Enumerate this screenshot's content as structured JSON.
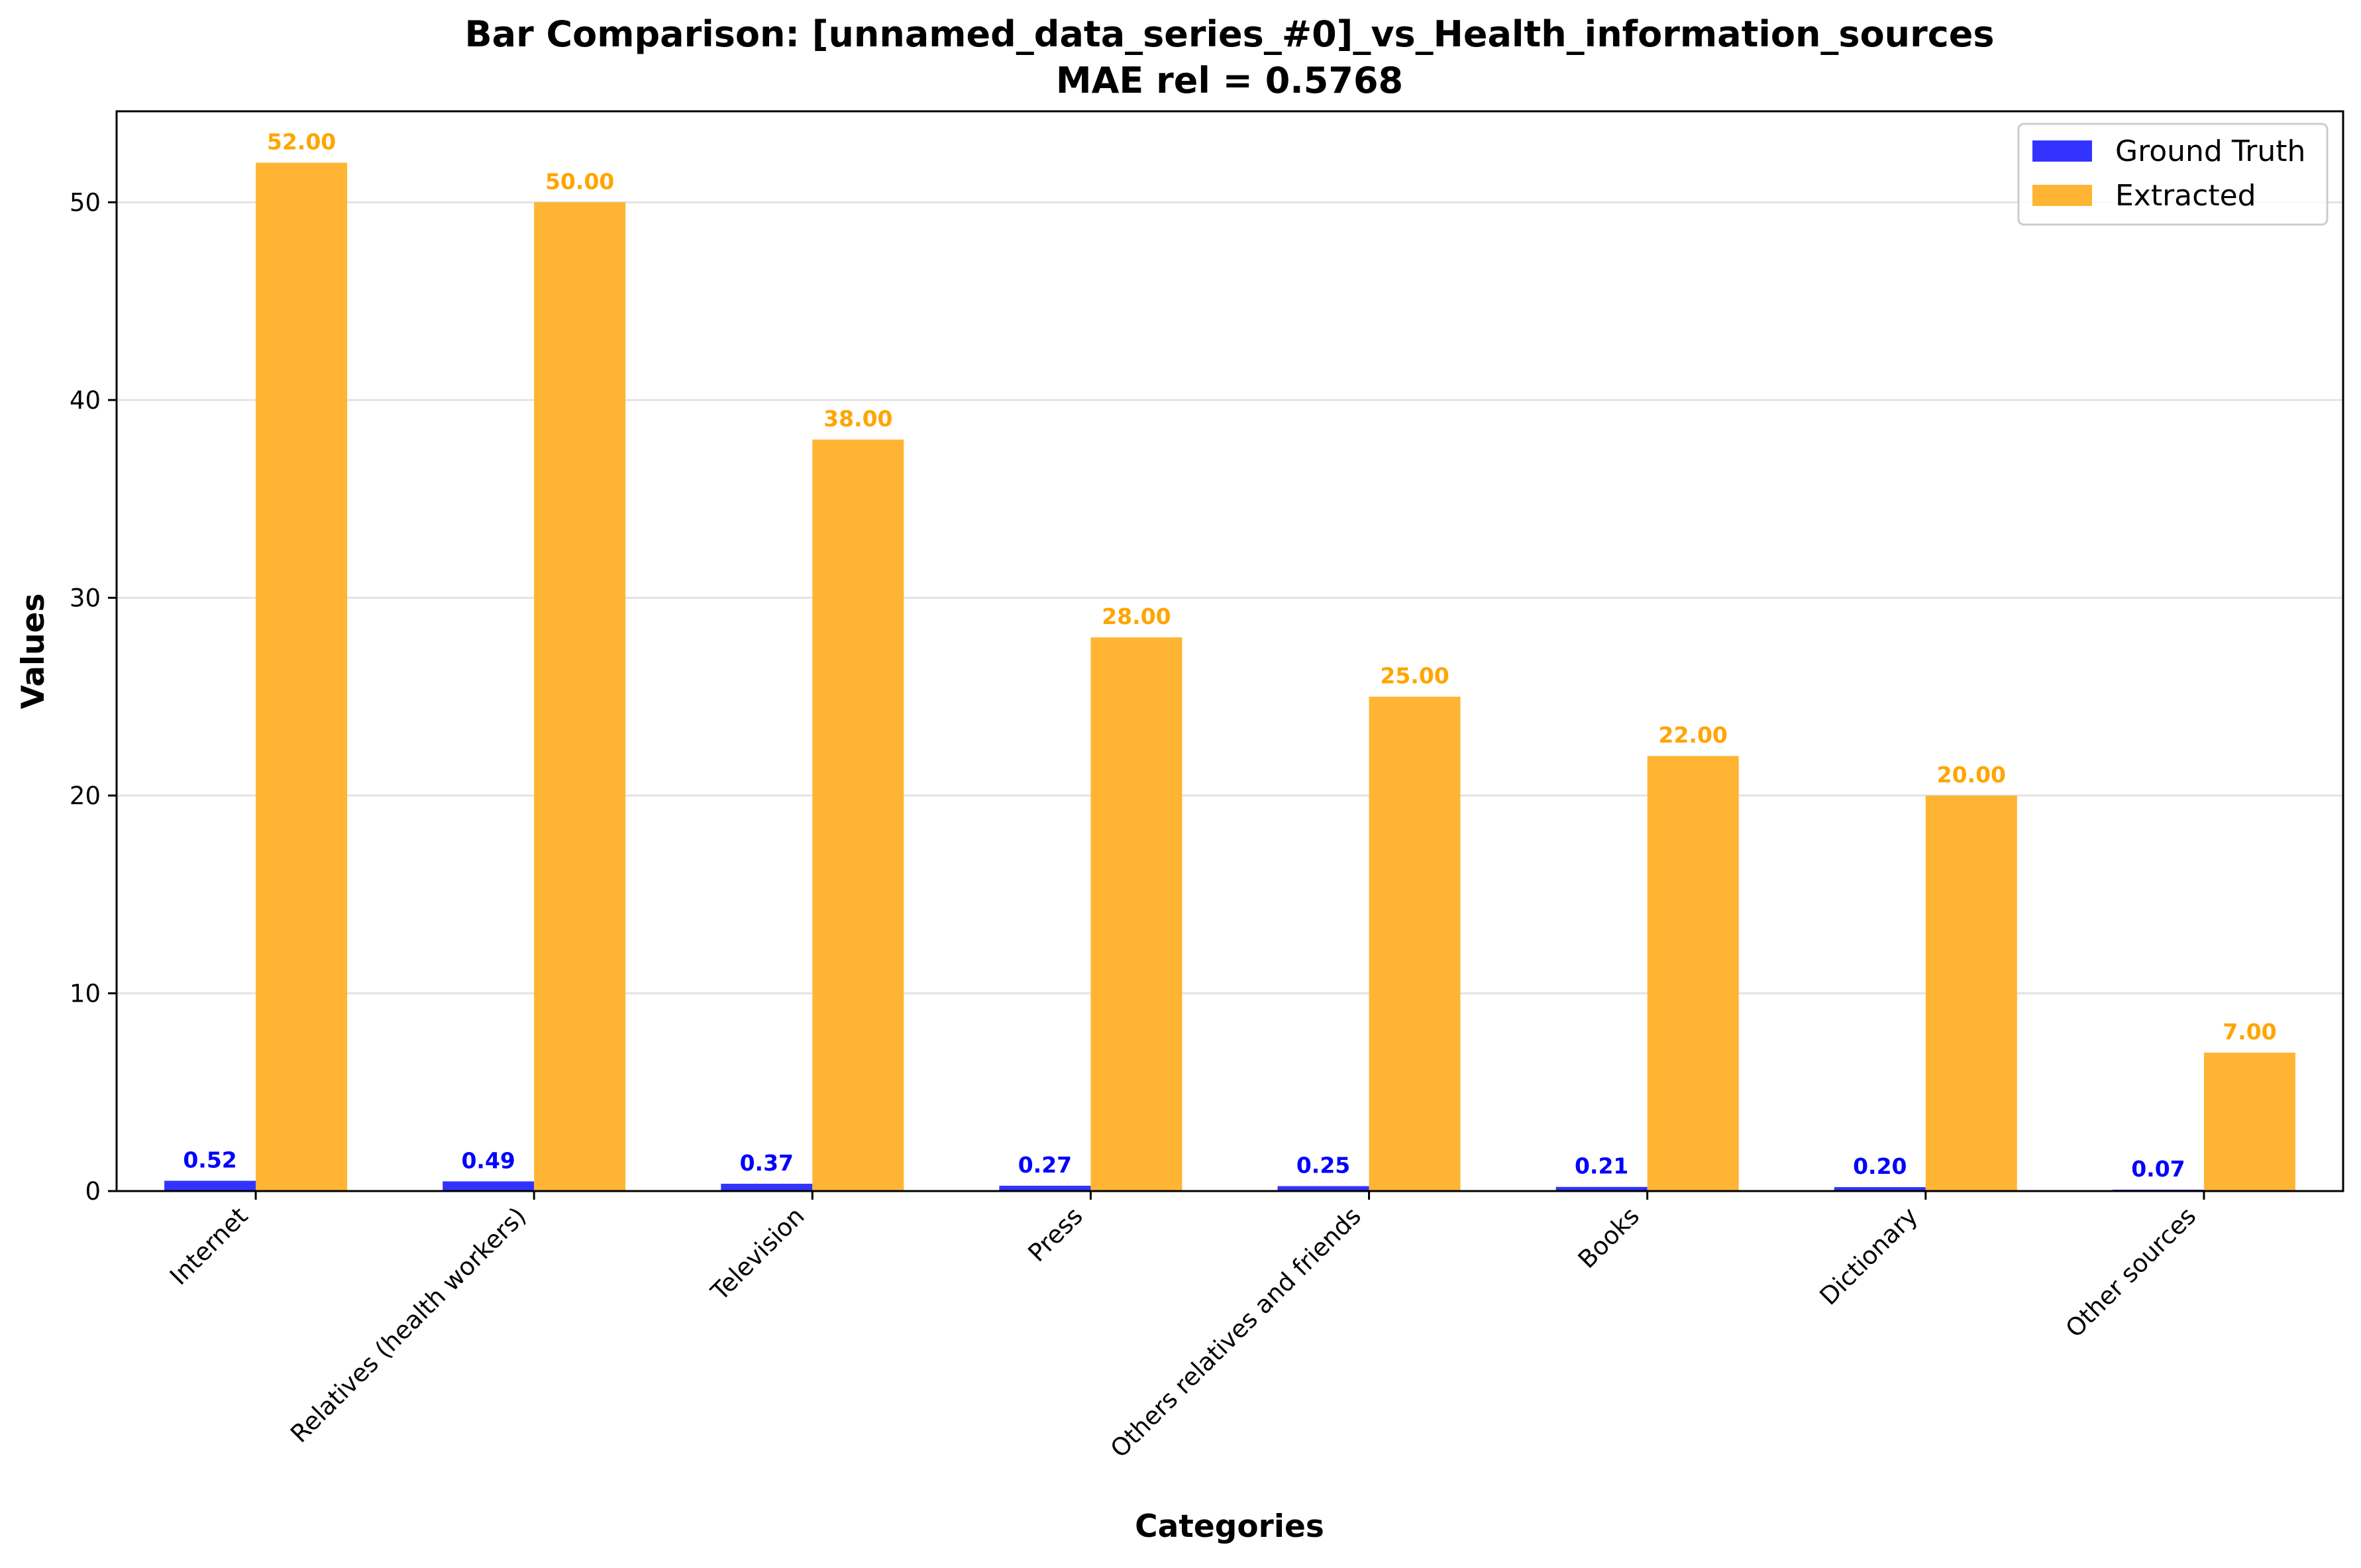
{
  "chart_data": {
    "type": "bar",
    "title": "Bar Comparison: [unnamed_data_series_#0]_vs_Health_information_sources",
    "subtitle": "MAE rel = 0.5768",
    "xlabel": "Categories",
    "ylabel": "Values",
    "ylim": [
      0,
      54.6
    ],
    "yticks": [
      0,
      10,
      20,
      30,
      40,
      50
    ],
    "ytick_labels": [
      "0",
      "10",
      "20",
      "30",
      "40",
      "50"
    ],
    "grid": "horizontal",
    "legend_position": "top-right",
    "categories": [
      "Internet",
      "Relatives (health workers)",
      "Television",
      "Press",
      "Others relatives and friends",
      "Books",
      "Dictionary",
      "Other sources"
    ],
    "series": [
      {
        "name": "Ground Truth",
        "color": "#3333ff",
        "label_color": "#0000ff",
        "values": [
          0.52,
          0.49,
          0.37,
          0.27,
          0.25,
          0.21,
          0.2,
          0.07
        ],
        "value_labels": [
          "0.52",
          "0.49",
          "0.37",
          "0.27",
          "0.25",
          "0.21",
          "0.20",
          "0.07"
        ]
      },
      {
        "name": "Extracted",
        "color": "#ffb533",
        "label_color": "#ffa500",
        "values": [
          52,
          50,
          38,
          28,
          25,
          22,
          20,
          7
        ],
        "value_labels": [
          "52.00",
          "50.00",
          "38.00",
          "28.00",
          "25.00",
          "22.00",
          "20.00",
          "7.00"
        ]
      }
    ]
  }
}
